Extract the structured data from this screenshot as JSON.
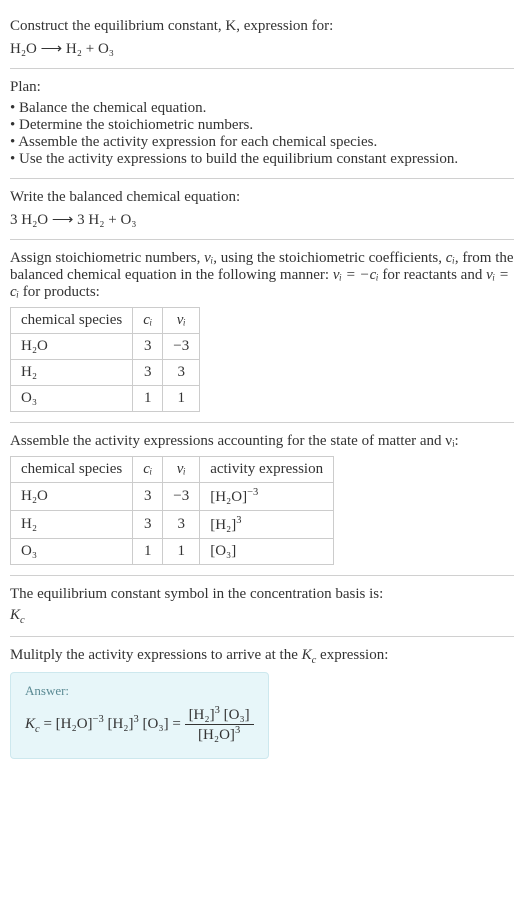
{
  "intro": {
    "line1": "Construct the equilibrium constant, K, expression for:",
    "equation_lhs": "H₂O",
    "arrow": "⟶",
    "equation_rhs": "H₂ + O₃"
  },
  "plan": {
    "heading": "Plan:",
    "items": [
      "Balance the chemical equation.",
      "Determine the stoichiometric numbers.",
      "Assemble the activity expression for each chemical species.",
      "Use the activity expressions to build the equilibrium constant expression."
    ]
  },
  "balanced": {
    "heading": "Write the balanced chemical equation:",
    "lhs": "3 H₂O",
    "arrow": "⟶",
    "rhs": "3 H₂ + O₃"
  },
  "assign": {
    "text_a": "Assign stoichiometric numbers, ",
    "nu": "νᵢ",
    "text_b": ", using the stoichiometric coefficients, ",
    "ci": "cᵢ",
    "text_c": ", from the balanced chemical equation in the following manner: ",
    "rel_reactants": "νᵢ = −cᵢ",
    "text_d": " for reactants and ",
    "rel_products": "νᵢ = cᵢ",
    "text_e": " for products:",
    "table": {
      "headers": [
        "chemical species",
        "cᵢ",
        "νᵢ"
      ],
      "rows": [
        [
          "H₂O",
          "3",
          "−3"
        ],
        [
          "H₂",
          "3",
          "3"
        ],
        [
          "O₃",
          "1",
          "1"
        ]
      ]
    }
  },
  "activity": {
    "heading": "Assemble the activity expressions accounting for the state of matter and νᵢ:",
    "headers": [
      "chemical species",
      "cᵢ",
      "νᵢ",
      "activity expression"
    ],
    "rows": [
      {
        "sp": "H₂O",
        "c": "3",
        "nu": "−3",
        "act_base": "[H₂O]",
        "act_exp": "−3"
      },
      {
        "sp": "H₂",
        "c": "3",
        "nu": "3",
        "act_base": "[H₂]",
        "act_exp": "3"
      },
      {
        "sp": "O₃",
        "c": "1",
        "nu": "1",
        "act_base": "[O₃]",
        "act_exp": ""
      }
    ]
  },
  "symbol": {
    "text": "The equilibrium constant symbol in the concentration basis is:",
    "sym": "K_c"
  },
  "multiply": {
    "text": "Mulitply the activity expressions to arrive at the K_c expression:"
  },
  "answer": {
    "label": "Answer:",
    "kc": "K_c",
    "eq": " = ",
    "term1_base": "[H₂O]",
    "term1_exp": "−3",
    "term2_base": "[H₂]",
    "term2_exp": "3",
    "term3": "[O₃]",
    "frac_num_a": "[H₂]",
    "frac_num_a_exp": "3",
    "frac_num_b": "[O₃]",
    "frac_den_a": "[H₂O]",
    "frac_den_a_exp": "3"
  },
  "colors": {
    "text": "#333333",
    "rule": "#d0d0d0",
    "table_border": "#cccccc",
    "answer_bg": "#e7f6f9",
    "answer_border": "#cde8ee",
    "answer_label": "#5a8a93"
  }
}
